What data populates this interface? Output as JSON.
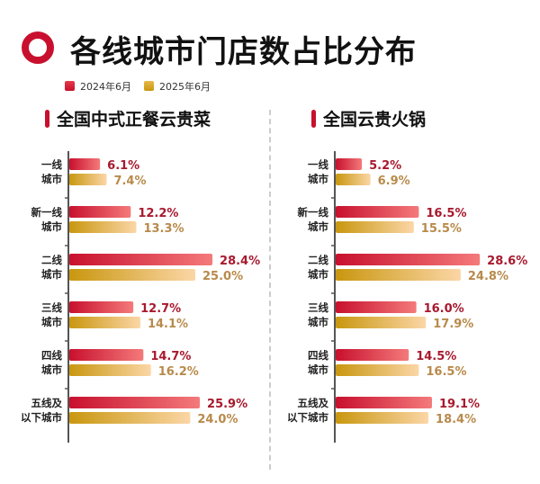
{
  "title": "各线城市门店数占比分布",
  "legend": [
    "2024年6月",
    "2025年6月"
  ],
  "colors": {
    "accent": "#c8102e",
    "series2024": [
      "#c8102e",
      "#f47a7a"
    ],
    "series2025": [
      "#c9970f",
      "#fbd6a6"
    ],
    "label2024": "#a8192e",
    "label2025": "#b88a4a"
  },
  "chart_data": [
    {
      "type": "bar",
      "orientation": "horizontal",
      "title": "全国中式正餐云贵菜",
      "categories": [
        [
          "一线",
          "城市"
        ],
        [
          "新一线",
          "城市"
        ],
        [
          "二线",
          "城市"
        ],
        [
          "三线",
          "城市"
        ],
        [
          "四线",
          "城市"
        ],
        [
          "五线及",
          "以下城市"
        ]
      ],
      "series": [
        {
          "name": "2024年6月",
          "values": [
            6.1,
            12.2,
            28.4,
            12.7,
            14.7,
            25.9
          ]
        },
        {
          "name": "2025年6月",
          "values": [
            7.4,
            13.3,
            25.0,
            14.1,
            16.2,
            24.0
          ]
        }
      ],
      "unit": "%"
    },
    {
      "type": "bar",
      "orientation": "horizontal",
      "title": "全国云贵火锅",
      "categories": [
        [
          "一线",
          "城市"
        ],
        [
          "新一线",
          "城市"
        ],
        [
          "二线",
          "城市"
        ],
        [
          "三线",
          "城市"
        ],
        [
          "四线",
          "城市"
        ],
        [
          "五线及",
          "以下城市"
        ]
      ],
      "series": [
        {
          "name": "2024年6月",
          "values": [
            5.2,
            16.5,
            28.6,
            16.0,
            14.5,
            19.1
          ]
        },
        {
          "name": "2025年6月",
          "values": [
            6.9,
            15.5,
            24.8,
            17.9,
            16.5,
            18.4
          ]
        }
      ],
      "unit": "%"
    }
  ]
}
